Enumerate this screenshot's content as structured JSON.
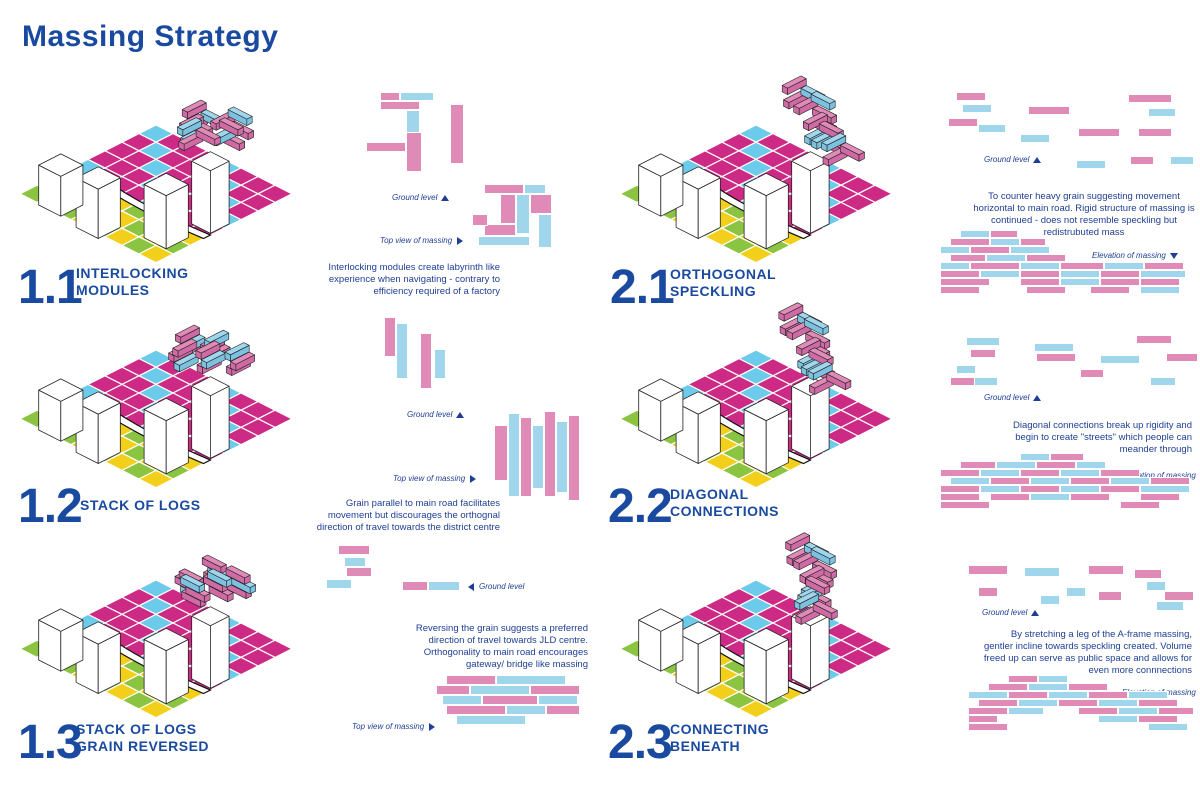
{
  "title": "Massing Strategy",
  "colors": {
    "pink": "#e08ab8",
    "blue": "#9fd6ec",
    "magenta": "#cc2a84",
    "cyan": "#6ccbea",
    "yellow": "#f2cf1a",
    "green": "#8bc441",
    "navy": "#1a4aa0"
  },
  "panels": [
    {
      "number": "1.1",
      "name_line1": "INTERLOCKING",
      "name_line2": "MODULES",
      "description": "Interlocking modules create labyrinth like experience when navigating - contrary to efficiency required of a factory",
      "labels": [
        "Ground level",
        "Top view of massing"
      ]
    },
    {
      "number": "1.2",
      "name_line1": "STACK OF LOGS",
      "name_line2": "",
      "description": "Grain parallel  to main road facilitates movement but discourages the orthognal direction of travel towards the district centre",
      "labels": [
        "Ground level",
        "Top view of massing"
      ]
    },
    {
      "number": "1.3",
      "name_line1": "STACK OF LOGS",
      "name_line2": "GRAIN REVERSED",
      "description": "Reversing the grain suggests a preferred direction of travel towards JLD centre. Orthogonality to main road encourages gateway/ bridge like massing",
      "labels": [
        "Ground level",
        "Top view of massing"
      ]
    },
    {
      "number": "2.1",
      "name_line1": "ORTHOGONAL",
      "name_line2": "SPECKLING",
      "description": "To counter heavy grain suggesting movement horizontal to main road. Rigid structure of massing is continued - does not resemble speckling but redistrubuted mass",
      "labels": [
        "Ground level",
        "Elevation of massing"
      ]
    },
    {
      "number": "2.2",
      "name_line1": "DIAGONAL",
      "name_line2": "CONNECTIONS",
      "description": "Diagonal connections break up rigidity and begin to create \"streets\" which people can meander through",
      "labels": [
        "Ground level",
        "Elevation of massing"
      ]
    },
    {
      "number": "2.3",
      "name_line1": "CONNECTING",
      "name_line2": "BENEATH",
      "description": "By stretching a leg of the A-frame massing, gentler incline towards speckling created. Volume freed up can serve as public space and allows for even more connnections",
      "labels": [
        "Ground level",
        "Elevation of massing"
      ]
    }
  ]
}
